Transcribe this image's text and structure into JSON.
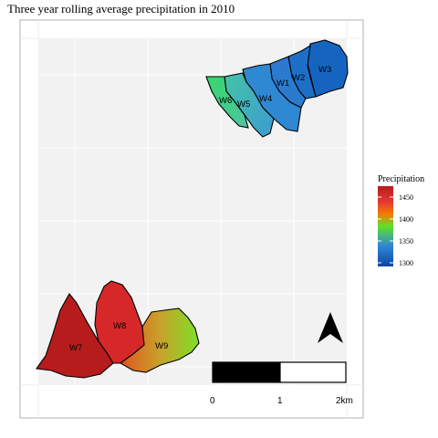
{
  "title": "Three year rolling average precipitation in 2010",
  "legend": {
    "title": "Precipitation",
    "ticks": [
      "1450",
      "1400",
      "1350",
      "1300"
    ]
  },
  "scale_bar": {
    "labels": [
      "0",
      "1",
      "2km"
    ]
  },
  "north_arrow": "north-arrow-icon",
  "regions": [
    {
      "id": "W3",
      "label": "W3"
    },
    {
      "id": "W2",
      "label": "W2"
    },
    {
      "id": "W1",
      "label": "W1"
    },
    {
      "id": "W4",
      "label": "W4"
    },
    {
      "id": "W5",
      "label": "W5"
    },
    {
      "id": "W6",
      "label": "W6"
    },
    {
      "id": "W7",
      "label": "W7"
    },
    {
      "id": "W8",
      "label": "W8"
    },
    {
      "id": "W9",
      "label": "W9"
    }
  ],
  "colors": {
    "high": "#b71c1c",
    "mid_high": "#e53935",
    "mid": "#5fe02b",
    "mid_low": "#2e86d6",
    "low": "#1565c0",
    "panel_bg": "#f2f2f2",
    "grid": "#ffffff"
  }
}
